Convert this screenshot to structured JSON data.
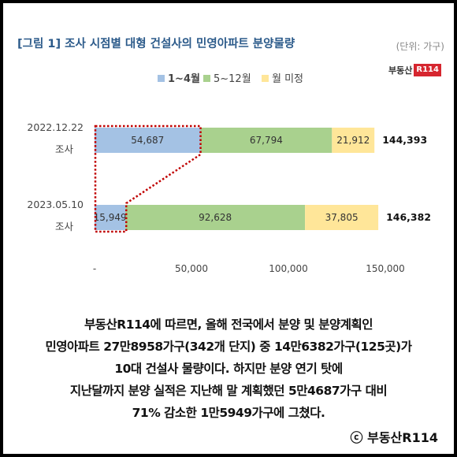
{
  "header": {
    "title": "[그림 1] 조사 시점별 대형 건설사의 민영아파트 분양물량",
    "unit": "(단위: 가구)",
    "logo_text": "부동산",
    "logo_box": "R114"
  },
  "chart_data": {
    "type": "bar",
    "orientation": "horizontal",
    "stacked": true,
    "categories": [
      "2022.12.22 조사",
      "2023.05.10 조사"
    ],
    "category_lines": [
      [
        "2022.12.22",
        "조사"
      ],
      [
        "2023.05.10",
        "조사"
      ]
    ],
    "series": [
      {
        "name": "1~4월",
        "values": [
          54687,
          15949
        ],
        "color": "#a4c2e4"
      },
      {
        "name": "5~12월",
        "values": [
          67794,
          92628
        ],
        "color": "#a9d18e"
      },
      {
        "name": "월 미정",
        "values": [
          21912,
          37805
        ],
        "color": "#ffe699"
      }
    ],
    "totals": [
      144393,
      146382
    ],
    "value_labels": [
      [
        "54,687",
        "67,794",
        "21,912"
      ],
      [
        "15,949",
        "92,628",
        "37,805"
      ]
    ],
    "total_labels": [
      "144,393",
      "146,382"
    ],
    "xlim": [
      0,
      150000
    ],
    "xticks": [
      0,
      50000,
      100000,
      150000
    ],
    "xtick_labels": [
      "-",
      "50,000",
      "100,000",
      "150,000"
    ],
    "legend_position": "top",
    "highlight_series": "1~4월",
    "highlight_color": "#c00000",
    "grid": false
  },
  "body": {
    "lines": [
      "부동산R114에 따르면, 올해 전국에서 분양 및 분양계획인",
      "민영아파트 27만8958가구(342개 단지) 중 14만6382가구(125곳)가",
      "10대 건설사 물량이다. 하지만 분양 연기 탓에",
      "지난달까지 분양 실적은 지난해 말 계획했던 5만4687가구 대비",
      "71% 감소한 1만5949가구에 그쳤다."
    ]
  },
  "copyright": "ⓒ 부동산R114"
}
